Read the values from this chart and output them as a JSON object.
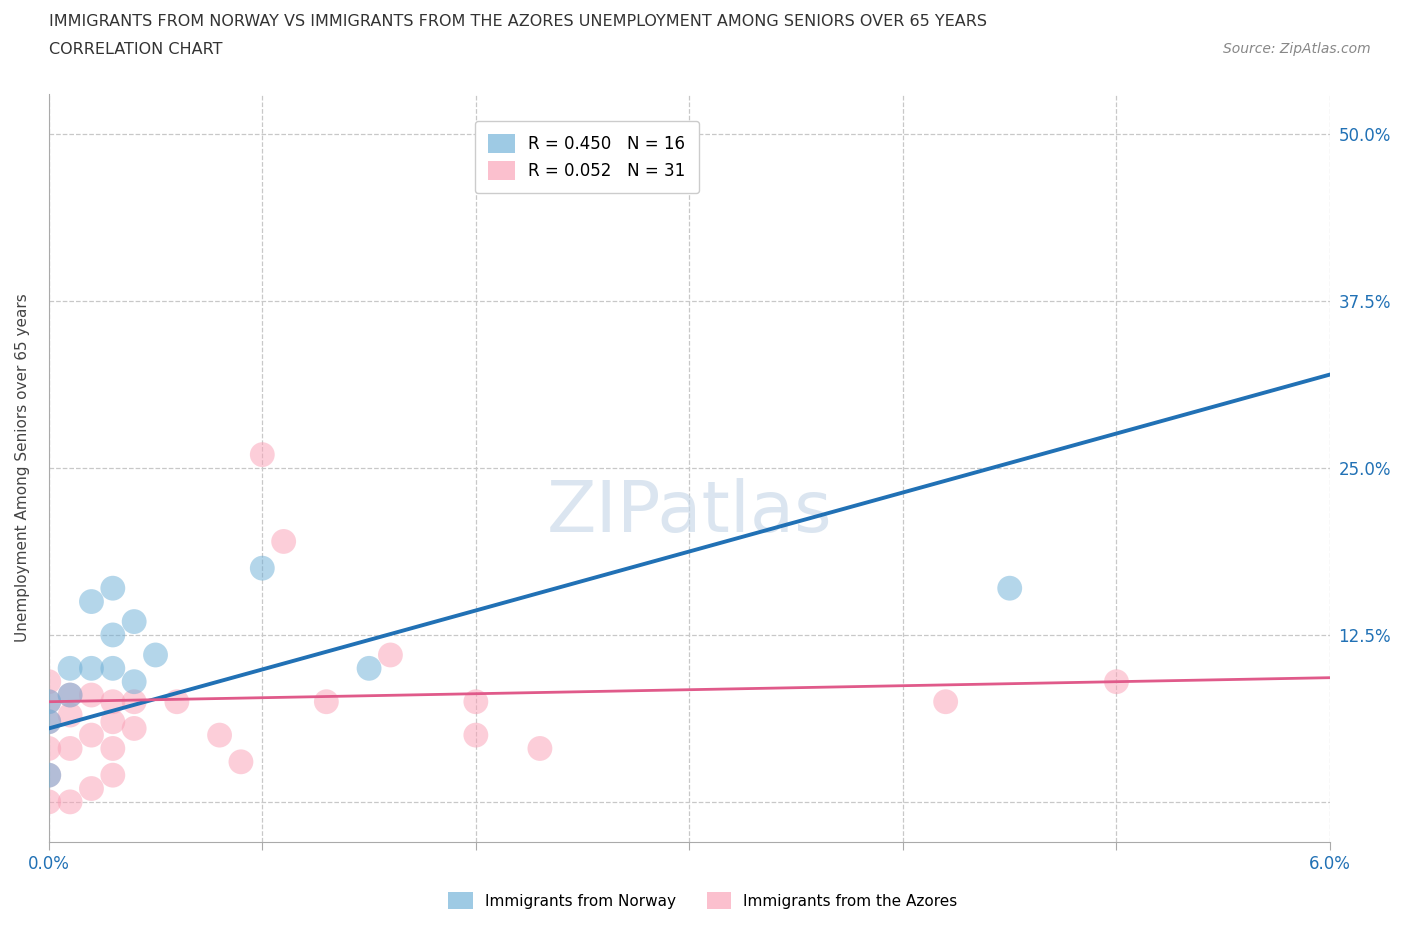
{
  "title_line1": "IMMIGRANTS FROM NORWAY VS IMMIGRANTS FROM THE AZORES UNEMPLOYMENT AMONG SENIORS OVER 65 YEARS",
  "title_line2": "CORRELATION CHART",
  "source": "Source: ZipAtlas.com",
  "ylabel_label": "Unemployment Among Seniors over 65 years",
  "xlim": [
    0.0,
    0.06
  ],
  "ylim": [
    -0.03,
    0.53
  ],
  "x_ticks": [
    0.0,
    0.01,
    0.02,
    0.03,
    0.04,
    0.05,
    0.06
  ],
  "y_ticks": [
    0.0,
    0.125,
    0.25,
    0.375,
    0.5
  ],
  "norway_R": 0.45,
  "norway_N": 16,
  "azores_R": 0.052,
  "azores_N": 31,
  "norway_color": "#6baed6",
  "azores_color": "#fa9fb5",
  "norway_line_color": "#2171b5",
  "azores_line_color": "#e05a8a",
  "norway_scatter_x": [
    0.0,
    0.0,
    0.0,
    0.001,
    0.001,
    0.002,
    0.002,
    0.003,
    0.003,
    0.003,
    0.004,
    0.004,
    0.005,
    0.01,
    0.015,
    0.045
  ],
  "norway_scatter_y": [
    0.02,
    0.06,
    0.075,
    0.08,
    0.1,
    0.1,
    0.15,
    0.1,
    0.125,
    0.16,
    0.09,
    0.135,
    0.11,
    0.175,
    0.1,
    0.16
  ],
  "azores_scatter_x": [
    0.0,
    0.0,
    0.0,
    0.0,
    0.0,
    0.0,
    0.001,
    0.001,
    0.001,
    0.001,
    0.002,
    0.002,
    0.002,
    0.003,
    0.003,
    0.003,
    0.003,
    0.004,
    0.004,
    0.006,
    0.008,
    0.009,
    0.01,
    0.011,
    0.013,
    0.016,
    0.02,
    0.02,
    0.023,
    0.042,
    0.05
  ],
  "azores_scatter_y": [
    0.0,
    0.02,
    0.04,
    0.06,
    0.075,
    0.09,
    0.0,
    0.04,
    0.065,
    0.08,
    0.01,
    0.05,
    0.08,
    0.02,
    0.04,
    0.06,
    0.075,
    0.055,
    0.075,
    0.075,
    0.05,
    0.03,
    0.26,
    0.195,
    0.075,
    0.11,
    0.05,
    0.075,
    0.04,
    0.075,
    0.09
  ],
  "norway_line_x": [
    0.0,
    0.06
  ],
  "norway_line_y": [
    0.055,
    0.32
  ],
  "azores_line_x": [
    0.0,
    0.06
  ],
  "azores_line_y": [
    0.075,
    0.093
  ],
  "background_color": "#ffffff",
  "grid_color": "#c8c8c8",
  "watermark_text": "ZIPatlas",
  "right_tick_labels": [
    "",
    "12.5%",
    "25.0%",
    "37.5%",
    "50.0%"
  ],
  "bottom_tick_labels": [
    "0.0%",
    "",
    "",
    "",
    "",
    "",
    "6.0%"
  ]
}
